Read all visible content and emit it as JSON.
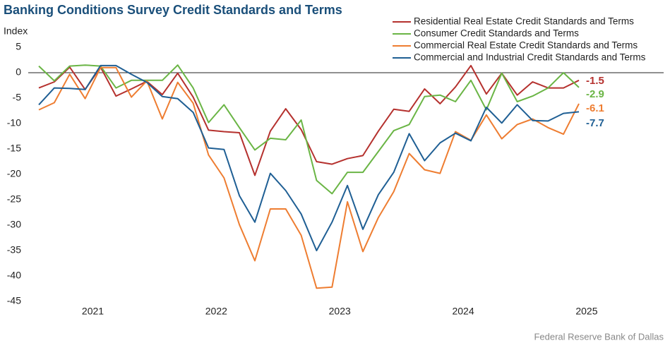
{
  "chart_data": {
    "type": "line",
    "title": "Banking Conditions Survey Credit Standards and Terms",
    "y_label": "Index",
    "source": "Federal Reserve Bank of Dallas",
    "categories": [
      null,
      null,
      null,
      null,
      null,
      null,
      null,
      null,
      null,
      null,
      null,
      null,
      null,
      null,
      null,
      null,
      null,
      null,
      null,
      null,
      null,
      null,
      null,
      null,
      null,
      null,
      null,
      null,
      null,
      null,
      null,
      null,
      null,
      null,
      null,
      null
    ],
    "x_labels": [
      "2021",
      "2022",
      "2023",
      "2024",
      "2025"
    ],
    "ylim": [
      -45,
      5
    ],
    "yticks": [
      -45,
      -40,
      -35,
      -30,
      -25,
      -20,
      -15,
      -10,
      -5,
      0,
      5
    ],
    "legend": "top-right",
    "series": [
      {
        "name": "Residential Real Estate Credit Standards and Terms",
        "color": "#b5312e",
        "values": [
          -3.0,
          -1.8,
          1.1,
          -3.3,
          1.1,
          -4.6,
          -3.2,
          -1.7,
          -4.3,
          -0.1,
          -4.8,
          -11.3,
          -11.6,
          -11.8,
          -20.2,
          -11.5,
          -7.1,
          -11.2,
          -17.5,
          -18.0,
          -16.9,
          -16.3,
          -11.5,
          -7.2,
          -7.6,
          -3.2,
          -6.1,
          -2.8,
          1.4,
          -4.2,
          -0.1,
          -4.4,
          -1.8,
          -3.0,
          -3.0,
          -1.5
        ]
      },
      {
        "name": "Consumer Credit Standards and Terms",
        "color": "#6ab545",
        "values": [
          1.3,
          -1.6,
          1.3,
          1.5,
          1.3,
          -3.0,
          -1.5,
          -1.5,
          -1.5,
          1.5,
          -3.0,
          -9.8,
          -6.3,
          -10.8,
          -15.2,
          -12.9,
          -13.2,
          -9.3,
          -21.2,
          -23.8,
          -19.6,
          -19.6,
          -15.5,
          -11.4,
          -10.2,
          -4.7,
          -4.4,
          -5.7,
          -1.5,
          -7.3,
          -0.1,
          -5.7,
          -4.6,
          -3.0,
          0.0,
          -2.9
        ]
      },
      {
        "name": "Commercial Real Estate Credit Standards and Terms",
        "color": "#ee7d31",
        "values": [
          -7.3,
          -5.9,
          -0.3,
          -5.1,
          1.0,
          1.0,
          -4.8,
          -1.6,
          -9.1,
          -1.9,
          -6.0,
          -16.2,
          -20.7,
          -29.9,
          -37.0,
          -26.8,
          -26.8,
          -32.0,
          -42.4,
          -42.2,
          -25.4,
          -35.2,
          -28.5,
          -23.4,
          -15.9,
          -19.1,
          -19.8,
          -11.6,
          -13.3,
          -8.3,
          -13.0,
          -10.2,
          -9.1,
          -10.8,
          -12.1,
          -6.1
        ]
      },
      {
        "name": "Commercial and Industrial Credit Standards and Terms",
        "color": "#1f5f94",
        "values": [
          -6.3,
          -3.0,
          -3.1,
          -3.3,
          1.4,
          1.4,
          -0.3,
          -1.9,
          -4.7,
          -5.1,
          -7.8,
          -14.8,
          -15.1,
          -24.2,
          -29.4,
          -19.8,
          -23.2,
          -27.8,
          -35.0,
          -29.4,
          -22.2,
          -30.8,
          -24.0,
          -19.6,
          -12.0,
          -17.3,
          -13.8,
          -11.9,
          -13.4,
          -6.8,
          -9.9,
          -6.3,
          -9.4,
          -9.5,
          -8.0,
          -7.7
        ]
      }
    ]
  }
}
